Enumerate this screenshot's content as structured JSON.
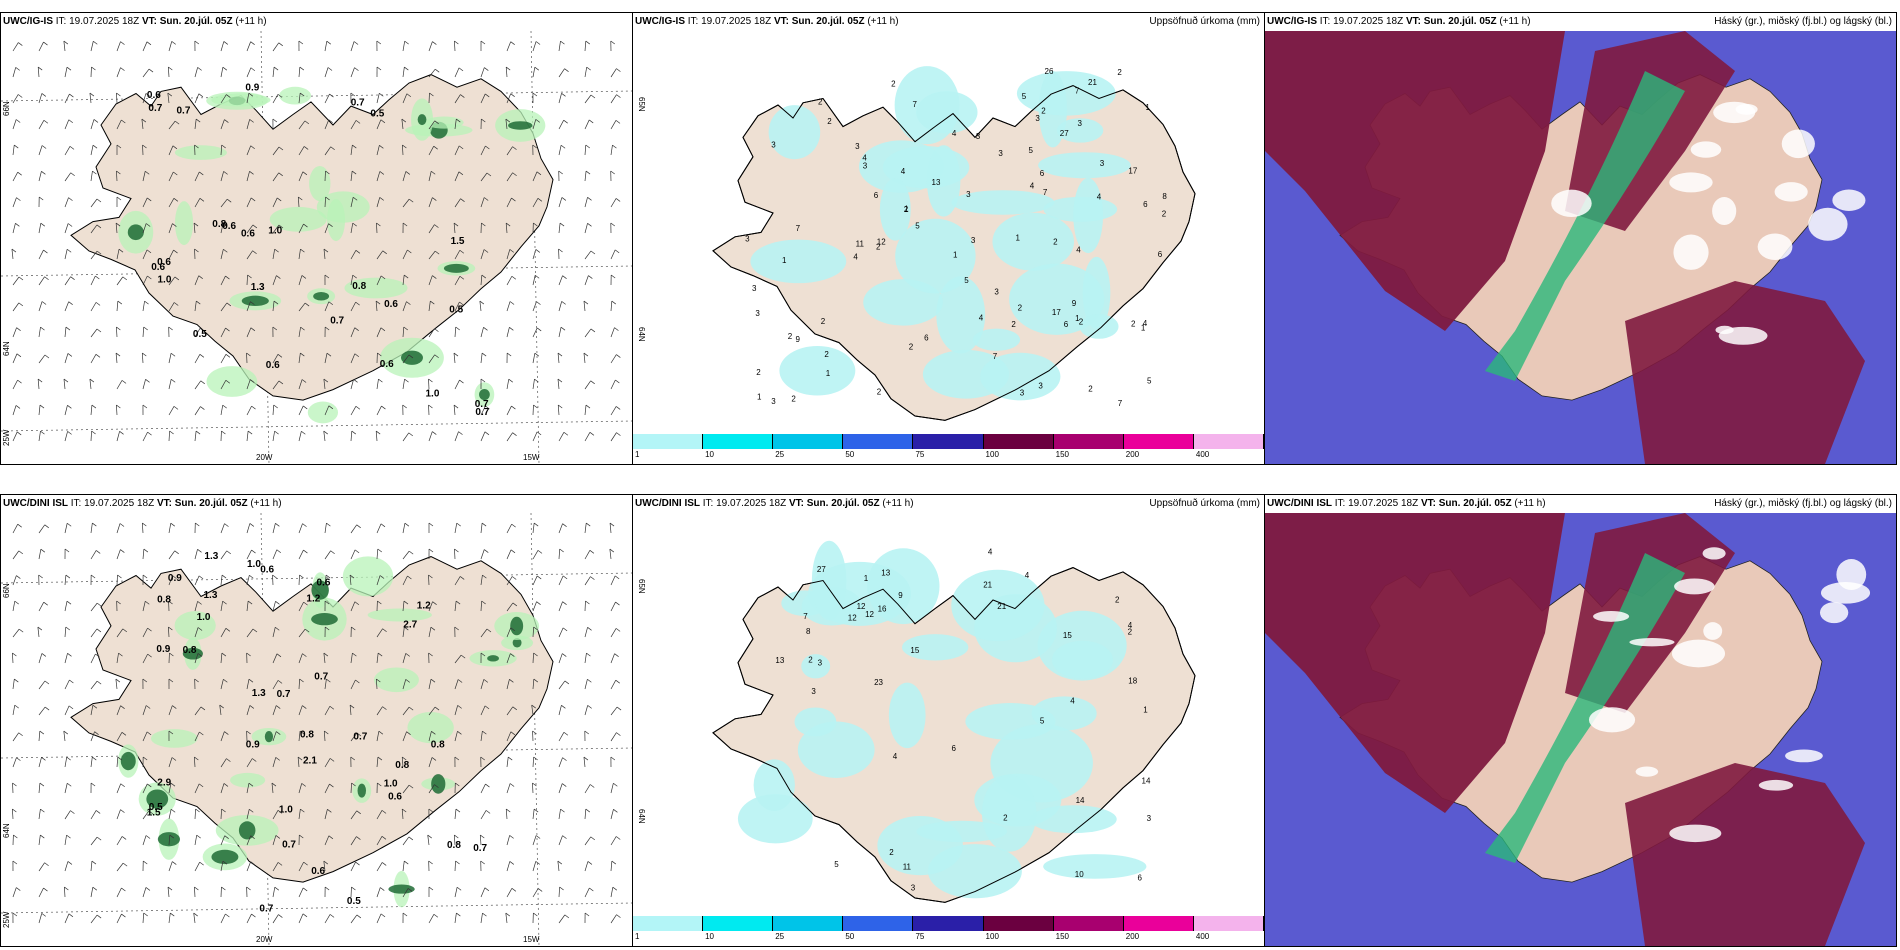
{
  "panels": [
    {
      "model": "UWC/IG-IS",
      "it_label": "IT:",
      "it": "19.07.2025 18Z",
      "vt_label": "VT:",
      "vt": "Sun. 20.júl. 05Z",
      "lead": "(+11 h)",
      "right_title": "",
      "lat_labels": [
        "66N",
        "64N",
        "25W"
      ],
      "lon_labels": [
        "20W",
        "15W"
      ],
      "values": [
        "0.7",
        "0.6",
        "0.9",
        "0.5",
        "0.7",
        "0.6",
        "0.6",
        "0.6",
        "1.0",
        "1.0",
        "0.7",
        "1.5",
        "0.8",
        "0.6",
        "0.8",
        "0.5",
        "0.6",
        "1.3",
        "0.7",
        "0.5",
        "0.6",
        "0.6",
        "0.7",
        "1.0",
        "0.7"
      ]
    },
    {
      "model": "UWC/IG-IS",
      "it_label": "IT:",
      "it": "19.07.2025 18Z",
      "vt_label": "VT:",
      "vt": "Sun. 20.júl. 05Z",
      "lead": "(+11 h)",
      "right_title": "Uppsöfnuð úrkoma (mm)",
      "lat_labels": [
        "65N",
        "64N"
      ],
      "values": [
        "2",
        "1",
        "3",
        "6",
        "3",
        "2",
        "1",
        "3",
        "1",
        "2",
        "26",
        "6",
        "3",
        "6",
        "7",
        "2",
        "3",
        "3",
        "1",
        "2",
        "4",
        "21",
        "11",
        "2",
        "12",
        "3",
        "2",
        "17",
        "6",
        "17",
        "4",
        "1",
        "6",
        "27",
        "7",
        "13",
        "3",
        "4",
        "9",
        "8",
        "1",
        "7",
        "2",
        "5",
        "9",
        "2",
        "2",
        "6",
        "5",
        "7",
        "7",
        "4",
        "1",
        "1",
        "2",
        "3",
        "2",
        "4",
        "3",
        "3",
        "4",
        "3",
        "2",
        "2",
        "5",
        "4",
        "2",
        "7",
        "2",
        "5",
        "3",
        "4",
        "1",
        "3",
        "3",
        "2",
        "5",
        "2",
        "4",
        "2",
        "3",
        "2",
        "3",
        "2"
      ]
    },
    {
      "model": "UWC/IG-IS",
      "it_label": "IT:",
      "it": "19.07.2025 18Z",
      "vt_label": "VT:",
      "vt": "Sun. 20.júl. 05Z",
      "lead": "(+11 h)",
      "right_title": "Háský (gr.), miðský (fj.bl.) og lágský (bl.)"
    },
    {
      "model": "UWC/DINI ISL",
      "it_label": "IT:",
      "it": "19.07.2025 18Z",
      "vt_label": "VT:",
      "vt": "Sun. 20.júl. 05Z",
      "lead": "(+11 h)",
      "right_title": "",
      "lat_labels": [
        "66N",
        "64N",
        "25W"
      ],
      "lon_labels": [
        "20W",
        "15W"
      ],
      "values": [
        "1.2",
        "0.9",
        "0.7",
        "0.7",
        "0.7",
        "2.9",
        "0.7",
        "1.3",
        "1.3",
        "1.0",
        "2.7",
        "2.1",
        "0.7",
        "1.0",
        "0.8",
        "1.5",
        "0.6",
        "0.8",
        "1.2",
        "0.6",
        "0.6",
        "1.3",
        "0.9",
        "0.7",
        "0.5",
        "0.6",
        "0.5",
        "1.0",
        "0.8",
        "0.8",
        "1.0",
        "0.8",
        "0.9",
        "0.8"
      ]
    },
    {
      "model": "UWC/DINI ISL",
      "it_label": "IT:",
      "it": "19.07.2025 18Z",
      "vt_label": "VT:",
      "vt": "Sun. 20.júl. 05Z",
      "lead": "(+11 h)",
      "right_title": "Uppsöfnuð úrkoma (mm)",
      "lat_labels": [
        "65N",
        "64N"
      ],
      "values": [
        "8",
        "12",
        "2",
        "21",
        "3",
        "12",
        "3",
        "2",
        "1",
        "2",
        "4",
        "6",
        "4",
        "5",
        "4",
        "4",
        "12",
        "5",
        "13",
        "11",
        "27",
        "7",
        "9",
        "14",
        "23",
        "21",
        "15",
        "2",
        "16",
        "13",
        "1",
        "14",
        "18",
        "15",
        "10",
        "6",
        "4",
        "3",
        "3",
        "2"
      ]
    },
    {
      "model": "UWC/DINI ISL",
      "it_label": "IT:",
      "it": "19.07.2025 18Z",
      "vt_label": "VT:",
      "vt": "Sun. 20.júl. 05Z",
      "lead": "(+11 h)",
      "right_title": "Háský (gr.), miðský (fj.bl.) og lágský (bl.)"
    }
  ],
  "colorbar": {
    "colors": [
      "#b3f5f7",
      "#00eaf0",
      "#00c4e8",
      "#2e63e8",
      "#2a1fa8",
      "#6b0040",
      "#a8006f",
      "#ea009a",
      "#f4b3ec"
    ],
    "ticks": [
      "1",
      "10",
      "25",
      "50",
      "75",
      "100",
      "150",
      "200",
      "400"
    ]
  },
  "colors": {
    "land": "#eee0d3",
    "sea": "#ffffff",
    "precip_light": "#b8f3b8",
    "precip_heavy": "#1f6b35",
    "precip_accum": "#b8f3f3",
    "high_cloud": "#7f1a3f",
    "mid_cloud": "#2bb87a",
    "low_cloud": "#5a5ad0"
  }
}
